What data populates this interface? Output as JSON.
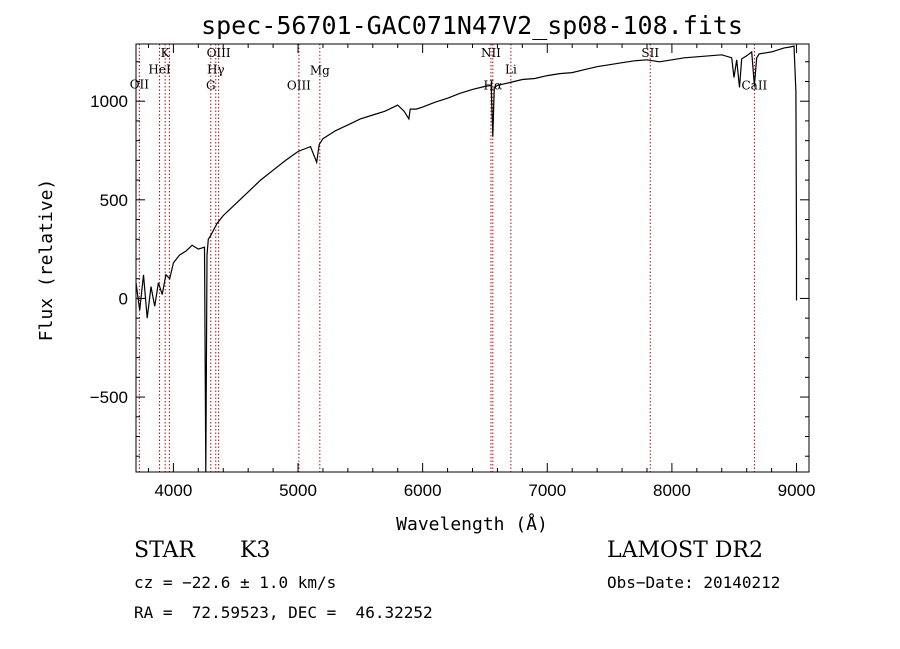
{
  "chart_data": {
    "type": "line",
    "title": "spec-56701-GAC071N47V2_sp08-108.fits",
    "xlabel": "Wavelength (Å)",
    "ylabel": "Flux (relative)",
    "xlim": [
      3700,
      9100
    ],
    "ylim": [
      -880,
      1290
    ],
    "xticks": [
      {
        "value": 4000,
        "label": "4000"
      },
      {
        "value": 5000,
        "label": "5000"
      },
      {
        "value": 6000,
        "label": "6000"
      },
      {
        "value": 7000,
        "label": "7000"
      },
      {
        "value": 8000,
        "label": "8000"
      },
      {
        "value": 9000,
        "label": "9000"
      }
    ],
    "yticks": [
      {
        "value": -500,
        "label": "−500"
      },
      {
        "value": 0,
        "label": "0"
      },
      {
        "value": 500,
        "label": "500"
      },
      {
        "value": 1000,
        "label": "1000"
      }
    ],
    "series": [
      {
        "color": "#000000",
        "x": [
          3700,
          3730,
          3760,
          3790,
          3820,
          3850,
          3880,
          3910,
          3940,
          3970,
          4000,
          4050,
          4100,
          4150,
          4200,
          4250,
          4260,
          4270,
          4280,
          4300,
          4350,
          4400,
          4500,
          4600,
          4700,
          4800,
          4900,
          5000,
          5100,
          5150,
          5170,
          5180,
          5200,
          5300,
          5400,
          5500,
          5600,
          5700,
          5800,
          5850,
          5890,
          5900,
          5950,
          6000,
          6100,
          6200,
          6300,
          6400,
          6500,
          6550,
          6563,
          6575,
          6600,
          6700,
          6800,
          6900,
          7000,
          7100,
          7200,
          7300,
          7400,
          7500,
          7600,
          7700,
          7800,
          7900,
          8000,
          8100,
          8200,
          8300,
          8400,
          8480,
          8498,
          8520,
          8542,
          8560,
          8600,
          8640,
          8662,
          8680,
          8700,
          8800,
          8900,
          8950,
          8980,
          8995,
          9000,
          9000
        ],
        "y": [
          80,
          -60,
          120,
          -100,
          60,
          -40,
          80,
          20,
          120,
          100,
          180,
          220,
          240,
          270,
          250,
          260,
          -890,
          220,
          300,
          320,
          380,
          420,
          480,
          540,
          600,
          650,
          700,
          745,
          770,
          690,
          780,
          790,
          810,
          850,
          880,
          910,
          930,
          950,
          980,
          950,
          910,
          960,
          960,
          970,
          995,
          1015,
          1040,
          1060,
          1075,
          1080,
          820,
          1070,
          1080,
          1095,
          1110,
          1115,
          1130,
          1140,
          1145,
          1160,
          1175,
          1185,
          1195,
          1205,
          1210,
          1200,
          1210,
          1220,
          1225,
          1230,
          1235,
          1220,
          1120,
          1210,
          1070,
          1215,
          1230,
          1250,
          1080,
          1220,
          1240,
          1250,
          1270,
          1275,
          1280,
          1050,
          260,
          -10
        ]
      }
    ],
    "reference_lines": [
      {
        "x": 3727,
        "label": "OII",
        "label_y": 1065
      },
      {
        "x": 3934,
        "label": "K",
        "label_y": 1225
      },
      {
        "x": 3889,
        "label": "HeI",
        "label_y": 1140
      },
      {
        "x": 3968,
        "label": "",
        "label_y": 1140
      },
      {
        "x": 4300,
        "label": "G",
        "label_y": 1060
      },
      {
        "x": 4340,
        "label": "Hγ",
        "label_y": 1140
      },
      {
        "x": 4363,
        "label": "OIII",
        "label_y": 1225
      },
      {
        "x": 5007,
        "label": "OIII",
        "label_y": 1060
      },
      {
        "x": 5175,
        "label": "Mg",
        "label_y": 1135
      },
      {
        "x": 6548,
        "label": "NII",
        "label_y": 1225
      },
      {
        "x": 6563,
        "label": "Hα",
        "label_y": 1060
      },
      {
        "x": 6708,
        "label": "Li",
        "label_y": 1140
      },
      {
        "x": 7826,
        "label": "SII",
        "label_y": 1225
      },
      {
        "x": 8662,
        "label": "CaII",
        "label_y": 1060
      }
    ],
    "line_color": "#b01010",
    "grid": false,
    "legend": "none"
  },
  "footer": {
    "object_type": "STAR",
    "subclass": "K3",
    "survey": "LAMOST DR2",
    "cz": "cz = −22.6 ± 1.0 km/s",
    "obs_date": "Obs−Date: 20140212",
    "coords": "RA =  72.59523, DEC =  46.32252"
  }
}
